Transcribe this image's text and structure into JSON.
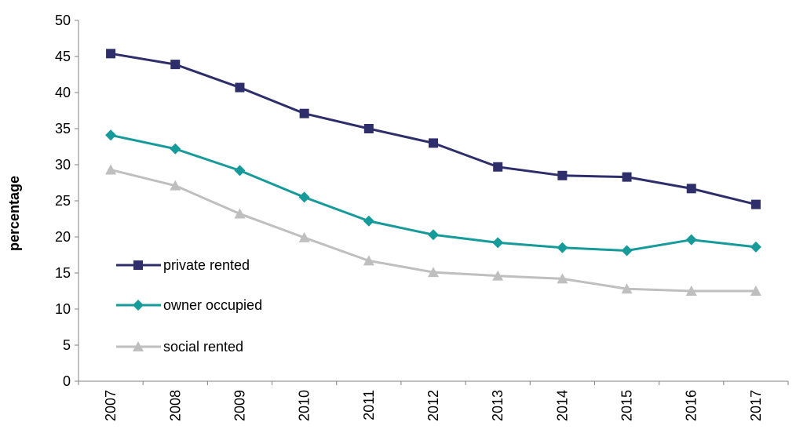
{
  "chart_data": {
    "type": "line",
    "ylabel": "percentage",
    "xlabel": "",
    "x": [
      "2007",
      "2008",
      "2009",
      "2010",
      "2011",
      "2012",
      "2013",
      "2014",
      "2015",
      "2016",
      "2017"
    ],
    "ylim": [
      0,
      50
    ],
    "yticks": [
      0,
      5,
      10,
      15,
      20,
      25,
      30,
      35,
      40,
      45,
      50
    ],
    "grid": false,
    "legend_position": "lower-left",
    "series": [
      {
        "name": "private rented",
        "marker": "square",
        "color": "#2e2e6b",
        "values": [
          45.4,
          43.9,
          40.7,
          37.1,
          35.0,
          33.0,
          29.7,
          28.5,
          28.3,
          26.7,
          24.5
        ]
      },
      {
        "name": "owner occupied",
        "marker": "diamond",
        "color": "#169a9a",
        "values": [
          34.1,
          32.2,
          29.2,
          25.5,
          22.2,
          20.3,
          19.2,
          18.5,
          18.1,
          19.6,
          18.6
        ]
      },
      {
        "name": "social rented",
        "marker": "triangle",
        "color": "#bfbfbf",
        "values": [
          29.3,
          27.1,
          23.2,
          19.9,
          16.7,
          15.1,
          14.6,
          14.2,
          12.8,
          12.5,
          12.5
        ]
      }
    ]
  }
}
